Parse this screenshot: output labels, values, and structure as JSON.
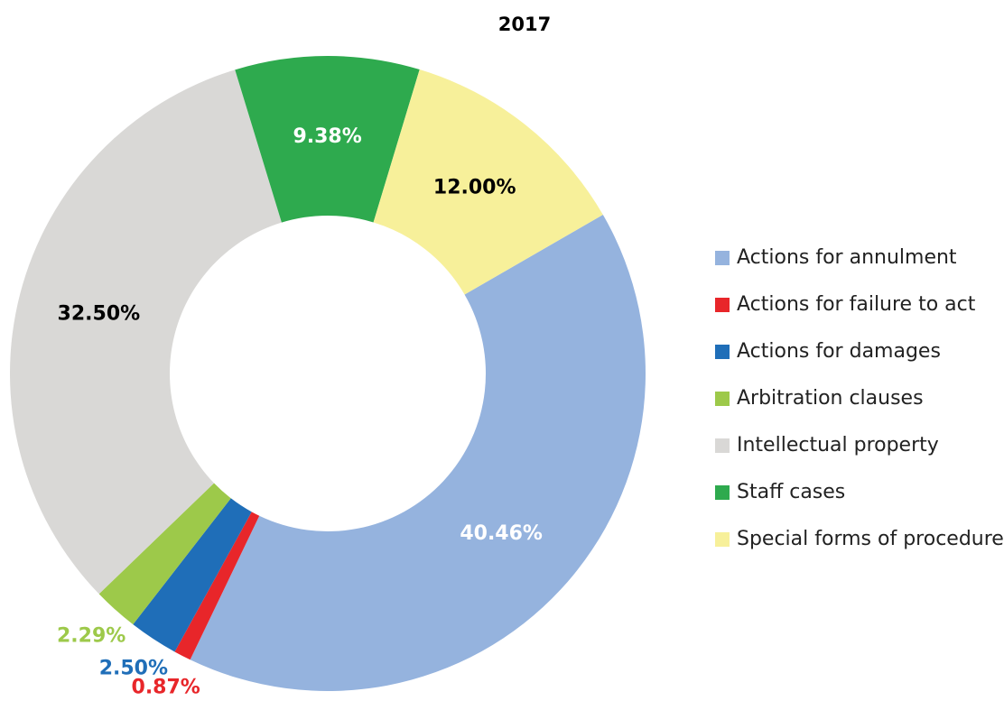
{
  "chart_data": {
    "type": "donut",
    "title": "2017",
    "categories": [
      "Actions for annulment",
      "Actions for failure to act",
      "Actions for damages",
      "Arbitration clauses",
      "Intellectual property",
      "Staff cases",
      "Special forms of procedure"
    ],
    "values": [
      40.46,
      0.87,
      2.5,
      2.29,
      32.5,
      9.38,
      12.0
    ],
    "value_labels": [
      "40.46%",
      "0.87%",
      "2.50%",
      "2.29%",
      "32.50%",
      "9.38%",
      "12.00%"
    ],
    "colors": [
      "#95b3de",
      "#e8262a",
      "#1f6eb8",
      "#9dc94a",
      "#d9d8d6",
      "#2eaa4e",
      "#f7f09a"
    ],
    "legend": "right"
  }
}
